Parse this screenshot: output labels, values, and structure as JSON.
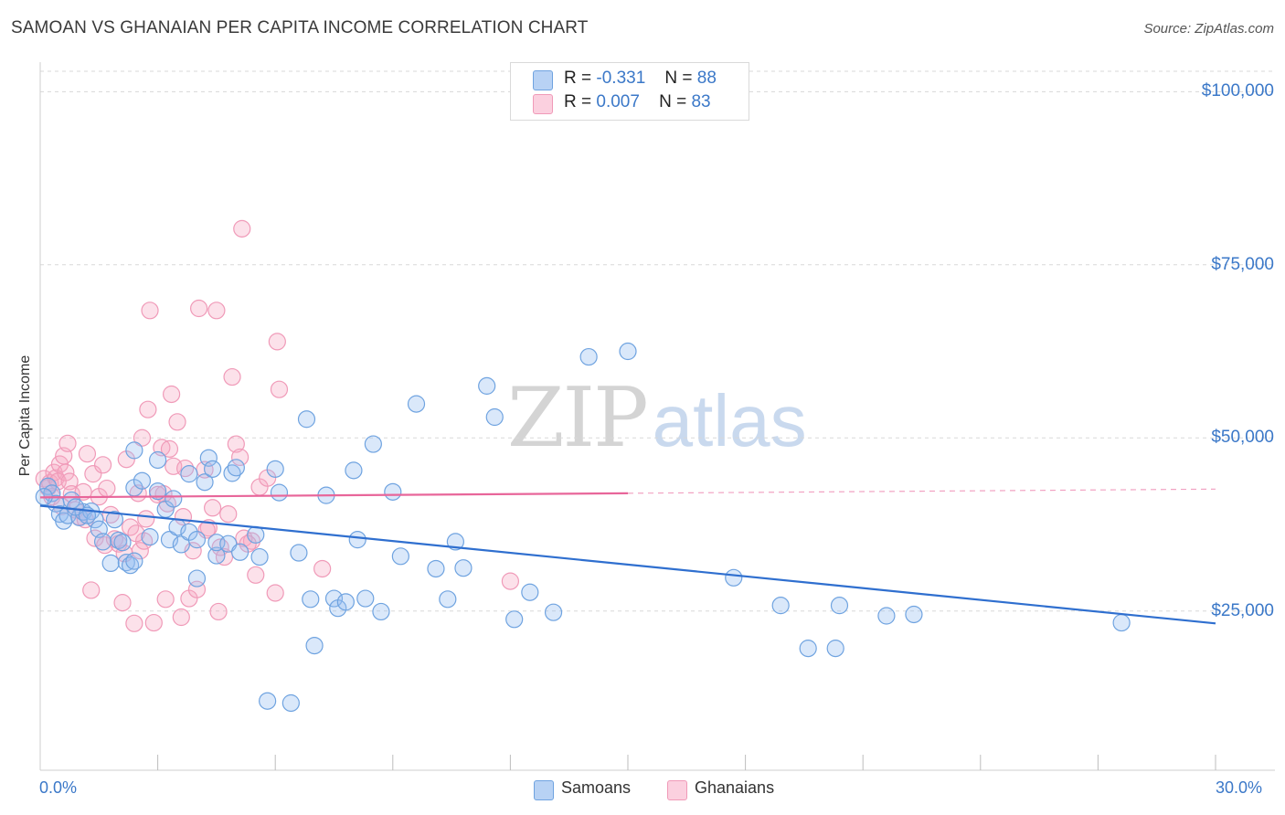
{
  "title": "SAMOAN VS GHANAIAN PER CAPITA INCOME CORRELATION CHART",
  "source": "Source: ZipAtlas.com",
  "watermark": {
    "zip": "ZIP",
    "atlas": "atlas"
  },
  "colors": {
    "samoan": "#6fa3e0",
    "samoan_line": "#2f6fcf",
    "ghanaian": "#f09ab8",
    "ghanaian_line": "#e8669a",
    "grid": "#d8d8d8",
    "axis_text": "#3b78c8"
  },
  "legend": {
    "rows": [
      {
        "r_label": "R =",
        "r_value": "-0.331",
        "n_label": "N =",
        "n_value": "88"
      },
      {
        "r_label": "R =",
        "r_value": "0.007",
        "n_label": "N =",
        "n_value": "83"
      }
    ]
  },
  "bottom_legend": {
    "samoans": "Samoans",
    "ghanaians": "Ghanaians"
  },
  "chart_data": {
    "type": "scatter",
    "title": "SAMOAN VS GHANAIAN PER CAPITA INCOME CORRELATION CHART",
    "xlabel": "",
    "ylabel": "Per Capita Income",
    "xlim": [
      0,
      30
    ],
    "ylim": [
      2000,
      104000
    ],
    "x_tick_labels": [
      "0.0%",
      "30.0%"
    ],
    "y_ticks": [
      25000,
      50000,
      75000,
      100000
    ],
    "y_tick_labels": [
      "$25,000",
      "$50,000",
      "$75,000",
      "$100,000"
    ],
    "grid": true,
    "legend_position": "top-center",
    "series": [
      {
        "name": "Samoans",
        "r": -0.331,
        "n": 88,
        "trend": {
          "x": [
            0,
            30
          ],
          "y": [
            40200,
            23200
          ]
        },
        "points": [
          [
            0.2,
            43000
          ],
          [
            0.3,
            42000
          ],
          [
            0.4,
            40500
          ],
          [
            0.5,
            39000
          ],
          [
            0.6,
            38000
          ],
          [
            0.7,
            38800
          ],
          [
            0.8,
            41000
          ],
          [
            1.0,
            38500
          ],
          [
            1.1,
            39300
          ],
          [
            1.3,
            39400
          ],
          [
            1.4,
            38200
          ],
          [
            1.5,
            36800
          ],
          [
            1.6,
            35000
          ],
          [
            1.8,
            31900
          ],
          [
            1.9,
            38200
          ],
          [
            2.0,
            35200
          ],
          [
            2.2,
            32000
          ],
          [
            2.3,
            31600
          ],
          [
            2.4,
            32200
          ],
          [
            2.4,
            42800
          ],
          [
            2.4,
            48200
          ],
          [
            2.6,
            43800
          ],
          [
            2.8,
            35700
          ],
          [
            3.0,
            42300
          ],
          [
            3.0,
            46800
          ],
          [
            3.2,
            39700
          ],
          [
            3.3,
            35300
          ],
          [
            3.4,
            41200
          ],
          [
            3.5,
            37100
          ],
          [
            3.6,
            34600
          ],
          [
            3.8,
            36400
          ],
          [
            3.8,
            44800
          ],
          [
            4.0,
            29700
          ],
          [
            4.0,
            35300
          ],
          [
            4.2,
            43600
          ],
          [
            4.3,
            47100
          ],
          [
            4.4,
            45500
          ],
          [
            4.5,
            33000
          ],
          [
            4.5,
            34900
          ],
          [
            4.8,
            34700
          ],
          [
            4.9,
            44900
          ],
          [
            5.0,
            45700
          ],
          [
            5.1,
            33500
          ],
          [
            5.5,
            36000
          ],
          [
            5.6,
            32800
          ],
          [
            5.8,
            12000
          ],
          [
            6.0,
            45500
          ],
          [
            6.1,
            42100
          ],
          [
            6.4,
            11700
          ],
          [
            6.6,
            33400
          ],
          [
            6.8,
            52700
          ],
          [
            6.9,
            26700
          ],
          [
            7.0,
            20000
          ],
          [
            7.3,
            41700
          ],
          [
            7.5,
            26800
          ],
          [
            7.6,
            25400
          ],
          [
            7.8,
            26300
          ],
          [
            8.0,
            45300
          ],
          [
            8.1,
            35300
          ],
          [
            8.3,
            26800
          ],
          [
            8.5,
            49100
          ],
          [
            8.7,
            24900
          ],
          [
            9.0,
            42200
          ],
          [
            9.2,
            32900
          ],
          [
            9.6,
            54900
          ],
          [
            10.1,
            31100
          ],
          [
            10.4,
            26700
          ],
          [
            10.6,
            35000
          ],
          [
            10.8,
            31200
          ],
          [
            11.4,
            57500
          ],
          [
            11.6,
            53000
          ],
          [
            12.1,
            23800
          ],
          [
            12.5,
            27700
          ],
          [
            13.1,
            24800
          ],
          [
            14.0,
            61700
          ],
          [
            15.0,
            62500
          ],
          [
            17.7,
            29800
          ],
          [
            18.9,
            25800
          ],
          [
            19.6,
            19600
          ],
          [
            20.3,
            19600
          ],
          [
            20.4,
            25800
          ],
          [
            21.6,
            24300
          ],
          [
            22.3,
            24500
          ],
          [
            27.6,
            23300
          ],
          [
            0.1,
            41500
          ],
          [
            0.9,
            40000
          ],
          [
            1.2,
            38800
          ],
          [
            2.1,
            34900
          ]
        ]
      },
      {
        "name": "Ghanaians",
        "r": 0.007,
        "n": 83,
        "trend": {
          "x": [
            0,
            15
          ],
          "y": [
            41400,
            42000
          ]
        },
        "trend_dashed": {
          "x": [
            15,
            30
          ],
          "y": [
            42000,
            42600
          ]
        },
        "points": [
          [
            0.1,
            44100
          ],
          [
            0.2,
            42800
          ],
          [
            0.25,
            43500
          ],
          [
            0.3,
            41500
          ],
          [
            0.35,
            45000
          ],
          [
            0.4,
            44200
          ],
          [
            0.45,
            43700
          ],
          [
            0.5,
            46200
          ],
          [
            0.6,
            47400
          ],
          [
            0.65,
            45000
          ],
          [
            0.7,
            49200
          ],
          [
            0.75,
            43700
          ],
          [
            0.8,
            41900
          ],
          [
            0.9,
            39600
          ],
          [
            1.0,
            38600
          ],
          [
            1.1,
            42200
          ],
          [
            1.2,
            47700
          ],
          [
            1.3,
            28000
          ],
          [
            1.35,
            44800
          ],
          [
            1.4,
            35500
          ],
          [
            1.5,
            41500
          ],
          [
            1.6,
            46100
          ],
          [
            1.65,
            34500
          ],
          [
            1.7,
            42700
          ],
          [
            1.8,
            38900
          ],
          [
            1.9,
            35400
          ],
          [
            2.0,
            34700
          ],
          [
            2.1,
            26200
          ],
          [
            2.15,
            33300
          ],
          [
            2.2,
            46900
          ],
          [
            2.3,
            37100
          ],
          [
            2.4,
            23200
          ],
          [
            2.5,
            42000
          ],
          [
            2.55,
            33700
          ],
          [
            2.6,
            50000
          ],
          [
            2.65,
            35100
          ],
          [
            2.7,
            38300
          ],
          [
            2.75,
            54100
          ],
          [
            2.8,
            68400
          ],
          [
            2.9,
            23300
          ],
          [
            3.0,
            41800
          ],
          [
            3.1,
            48600
          ],
          [
            3.2,
            26700
          ],
          [
            3.25,
            40500
          ],
          [
            3.3,
            48400
          ],
          [
            3.35,
            56300
          ],
          [
            3.4,
            45900
          ],
          [
            3.5,
            52300
          ],
          [
            3.6,
            24100
          ],
          [
            3.65,
            38600
          ],
          [
            3.7,
            45600
          ],
          [
            3.8,
            26800
          ],
          [
            3.9,
            33700
          ],
          [
            4.0,
            28100
          ],
          [
            4.05,
            68700
          ],
          [
            4.2,
            45400
          ],
          [
            4.3,
            37000
          ],
          [
            4.4,
            39900
          ],
          [
            4.5,
            68400
          ],
          [
            4.55,
            24900
          ],
          [
            4.6,
            34200
          ],
          [
            4.7,
            32800
          ],
          [
            4.8,
            39000
          ],
          [
            4.9,
            58800
          ],
          [
            5.0,
            49100
          ],
          [
            5.1,
            47200
          ],
          [
            5.15,
            80200
          ],
          [
            5.2,
            35500
          ],
          [
            5.4,
            35100
          ],
          [
            5.5,
            30200
          ],
          [
            5.6,
            42900
          ],
          [
            5.8,
            44200
          ],
          [
            6.0,
            27600
          ],
          [
            6.05,
            63900
          ],
          [
            6.1,
            57000
          ],
          [
            7.2,
            31100
          ],
          [
            12.0,
            29300
          ],
          [
            1.15,
            38200
          ],
          [
            0.55,
            40100
          ],
          [
            2.45,
            36200
          ],
          [
            3.15,
            41900
          ],
          [
            4.25,
            36700
          ],
          [
            5.3,
            34700
          ]
        ]
      }
    ]
  }
}
